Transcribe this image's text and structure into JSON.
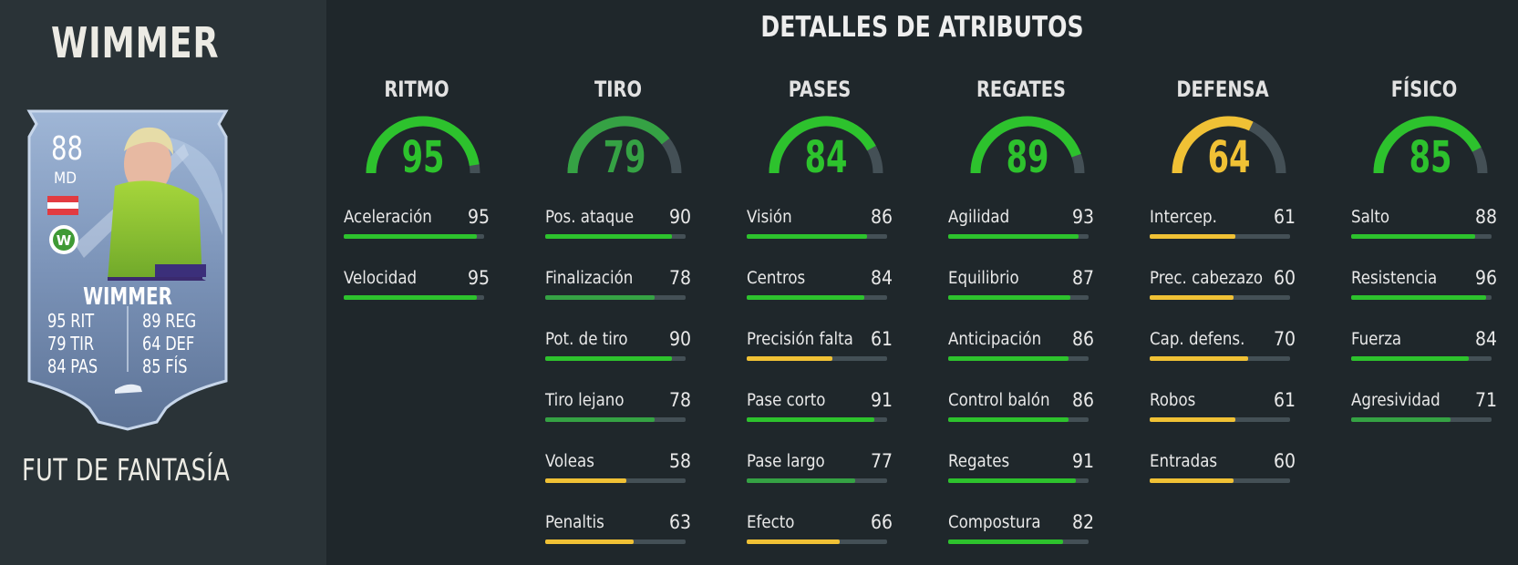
{
  "player": {
    "name": "WIMMER",
    "card_type": "FUT DE FANTASÍA"
  },
  "card": {
    "rating": "88",
    "position": "MD",
    "name": "WIMMER",
    "stats_left": [
      {
        "value": "95",
        "label": "RIT"
      },
      {
        "value": "79",
        "label": "TIR"
      },
      {
        "value": "84",
        "label": "PAS"
      }
    ],
    "stats_right": [
      {
        "value": "89",
        "label": "REG"
      },
      {
        "value": "64",
        "label": "DEF"
      },
      {
        "value": "85",
        "label": "FÍS"
      }
    ],
    "nation": "austria",
    "club": "wolfsburg"
  },
  "details": {
    "title": "DETALLES DE ATRIBUTOS",
    "colors": {
      "green": "#1fbd1f",
      "dark_green": "#2f9a3b",
      "yellow": "#f0c135",
      "track": "#445056"
    },
    "categories": [
      {
        "title": "RITMO",
        "value": 95,
        "color": "#2dc22d",
        "stats": [
          {
            "label": "Aceleración",
            "value": 95,
            "color": "#2dc22d"
          },
          {
            "label": "Velocidad",
            "value": 95,
            "color": "#2dc22d"
          }
        ]
      },
      {
        "title": "TIRO",
        "value": 79,
        "color": "#35a244",
        "stats": [
          {
            "label": "Pos. ataque",
            "value": 90,
            "color": "#2dc22d"
          },
          {
            "label": "Finalización",
            "value": 78,
            "color": "#35a244"
          },
          {
            "label": "Pot. de tiro",
            "value": 90,
            "color": "#2dc22d"
          },
          {
            "label": "Tiro lejano",
            "value": 78,
            "color": "#35a244"
          },
          {
            "label": "Voleas",
            "value": 58,
            "color": "#f0c135"
          },
          {
            "label": "Penaltis",
            "value": 63,
            "color": "#f0c135"
          }
        ]
      },
      {
        "title": "PASES",
        "value": 84,
        "color": "#2dc22d",
        "stats": [
          {
            "label": "Visión",
            "value": 86,
            "color": "#2dc22d"
          },
          {
            "label": "Centros",
            "value": 84,
            "color": "#2dc22d"
          },
          {
            "label": "Precisión falta",
            "value": 61,
            "color": "#f0c135"
          },
          {
            "label": "Pase corto",
            "value": 91,
            "color": "#2dc22d"
          },
          {
            "label": "Pase largo",
            "value": 77,
            "color": "#35a244"
          },
          {
            "label": "Efecto",
            "value": 66,
            "color": "#f0c135"
          }
        ]
      },
      {
        "title": "REGATES",
        "value": 89,
        "color": "#2dc22d",
        "stats": [
          {
            "label": "Agilidad",
            "value": 93,
            "color": "#2dc22d"
          },
          {
            "label": "Equilibrio",
            "value": 87,
            "color": "#2dc22d"
          },
          {
            "label": "Anticipación",
            "value": 86,
            "color": "#2dc22d"
          },
          {
            "label": "Control balón",
            "value": 86,
            "color": "#2dc22d"
          },
          {
            "label": "Regates",
            "value": 91,
            "color": "#2dc22d"
          },
          {
            "label": "Compostura",
            "value": 82,
            "color": "#2dc22d"
          }
        ]
      },
      {
        "title": "DEFENSA",
        "value": 64,
        "color": "#f0c135",
        "stats": [
          {
            "label": "Intercep.",
            "value": 61,
            "color": "#f0c135"
          },
          {
            "label": "Prec. cabezazo",
            "value": 60,
            "color": "#f0c135"
          },
          {
            "label": "Cap. defens.",
            "value": 70,
            "color": "#f0c135"
          },
          {
            "label": "Robos",
            "value": 61,
            "color": "#f0c135"
          },
          {
            "label": "Entradas",
            "value": 60,
            "color": "#f0c135"
          }
        ]
      },
      {
        "title": "FÍSICO",
        "value": 85,
        "color": "#2dc22d",
        "stats": [
          {
            "label": "Salto",
            "value": 88,
            "color": "#2dc22d"
          },
          {
            "label": "Resistencia",
            "value": 96,
            "color": "#2dc22d"
          },
          {
            "label": "Fuerza",
            "value": 84,
            "color": "#2dc22d"
          },
          {
            "label": "Agresividad",
            "value": 71,
            "color": "#35a244"
          }
        ]
      }
    ]
  }
}
